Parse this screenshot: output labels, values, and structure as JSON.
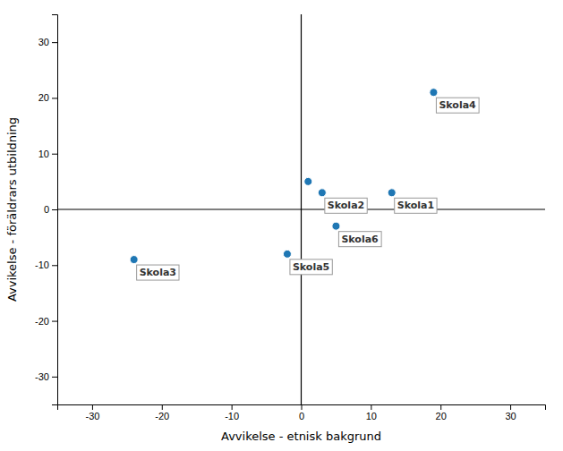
{
  "chart_data": {
    "type": "scatter",
    "xlabel": "Avvikelse - etnisk bakgrund",
    "ylabel": "Avvikelse - föräldrars utbildning",
    "x": [
      19,
      13,
      3,
      5,
      -2,
      -24,
      1
    ],
    "values": [
      21,
      3,
      3,
      -3,
      -8,
      -9,
      5
    ],
    "labels": [
      "Skola4",
      "Skola1",
      "Skola2",
      "Skola6",
      "Skola5",
      "Skola3",
      null
    ],
    "xlim": [
      -35,
      35
    ],
    "ylim": [
      -35,
      35
    ],
    "xticks": [
      -30,
      -20,
      -10,
      0,
      10,
      20,
      30
    ],
    "yticks": [
      -30,
      -20,
      -10,
      0,
      10,
      20,
      30
    ],
    "hlines": [
      0
    ],
    "vlines": [
      0
    ],
    "grid": false
  }
}
